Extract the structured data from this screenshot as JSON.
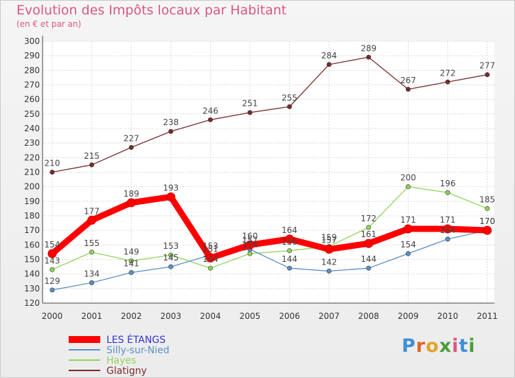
{
  "title": "Evolution des Impôts locaux par Habitant",
  "subtitle": "(en € et par an)",
  "logo": {
    "letters": [
      "P",
      "r",
      "o",
      "x",
      "i",
      "t",
      "i"
    ],
    "colors": [
      "#3d8fd6",
      "#e2622a",
      "#e2a32a",
      "#4a9e3c",
      "#d9577f",
      "#3d8fd6",
      "#4a9e3c"
    ]
  },
  "chart_data": {
    "type": "line",
    "title": "Evolution des Impôts locaux par Habitant",
    "subtitle": "(en € et par an)",
    "xlabel": "",
    "ylabel": "",
    "ylim": [
      120,
      300
    ],
    "ytick_step": 10,
    "categories": [
      "2000",
      "2001",
      "2002",
      "2003",
      "2004",
      "2005",
      "2006",
      "2007",
      "2008",
      "2009",
      "2010",
      "2011"
    ],
    "legend_position": "bottom-left",
    "series": [
      {
        "name": "LES ÉTANGS",
        "color": "#ff0000",
        "legend_color": "#3333cc",
        "values": [
          154,
          177,
          189,
          193,
          151,
          160,
          164,
          157,
          161,
          171,
          171,
          170
        ],
        "labels": [
          "154",
          "177",
          "189",
          "193",
          "151",
          "160",
          "164",
          "157",
          "161",
          "171",
          "171",
          "170"
        ]
      },
      {
        "name": "Silly-sur-Nied",
        "color": "#5b8fc7",
        "legend_color": "#5b8fc7",
        "values": [
          129,
          134,
          141,
          145,
          153,
          157,
          144,
          142,
          144,
          154,
          164,
          170
        ],
        "labels": [
          "129",
          "134",
          "141",
          "145",
          "153",
          "157",
          "144",
          "142",
          "144",
          "154",
          "164",
          "170"
        ]
      },
      {
        "name": "Hayes",
        "color": "#8fd45a",
        "legend_color": "#8fd45a",
        "values": [
          143,
          155,
          149,
          153,
          144,
          154,
          156,
          159,
          172,
          200,
          196,
          185
        ],
        "labels": [
          "143",
          "155",
          "149",
          "153",
          "144",
          "154",
          "156",
          "159",
          "172",
          "200",
          "196",
          "185"
        ]
      },
      {
        "name": "Glatigny",
        "color": "#7a2a2a",
        "legend_color": "#7a2a2a",
        "values": [
          210,
          215,
          227,
          238,
          246,
          251,
          255,
          284,
          289,
          267,
          272,
          277
        ],
        "labels": [
          "210",
          "215",
          "227",
          "238",
          "246",
          "251",
          "255",
          "284",
          "289",
          "267",
          "272",
          "277"
        ]
      }
    ]
  }
}
